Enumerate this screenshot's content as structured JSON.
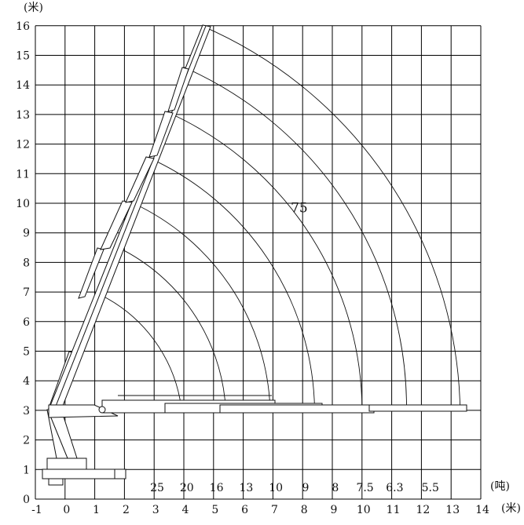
{
  "diagram": {
    "x_unit_label": "(米)",
    "y_unit_label": "(米)",
    "load_unit_label": "(吨)",
    "x_ticks": [
      "-1",
      "0",
      "1",
      "2",
      "3",
      "4",
      "5",
      "6",
      "7",
      "8",
      "9",
      "10",
      "11",
      "12",
      "13",
      "14"
    ],
    "y_ticks": [
      "0",
      "1",
      "2",
      "3",
      "4",
      "5",
      "6",
      "7",
      "8",
      "9",
      "10",
      "11",
      "12",
      "13",
      "14",
      "15",
      "16"
    ],
    "x_range": [
      -1,
      14
    ],
    "y_range": [
      0,
      16
    ],
    "capacities": [
      {
        "label": "25",
        "radius_m": 4.0
      },
      {
        "label": "20",
        "radius_m": 5.0
      },
      {
        "label": "16",
        "radius_m": 6.0
      },
      {
        "label": "13",
        "radius_m": 7.0
      },
      {
        "label": "10",
        "radius_m": 8.0
      },
      {
        "label": "9",
        "radius_m": 9.0
      },
      {
        "label": "8",
        "radius_m": 10.0
      },
      {
        "label": "7.5",
        "radius_m": 11.0
      },
      {
        "label": "6.3",
        "radius_m": 12.0
      },
      {
        "label": "5.5",
        "radius_m": 13.2
      }
    ],
    "arcs": [
      {
        "start": [
          1.2,
          6.9
        ],
        "end": [
          3.9,
          3.2
        ]
      },
      {
        "start": [
          1.8,
          8.5
        ],
        "end": [
          5.4,
          3.2
        ]
      },
      {
        "start": [
          2.3,
          10.0
        ],
        "end": [
          6.9,
          3.2
        ]
      },
      {
        "start": [
          2.9,
          11.5
        ],
        "end": [
          8.4,
          3.2
        ]
      },
      {
        "start": [
          3.4,
          13.1
        ],
        "end": [
          10.0,
          3.2
        ]
      },
      {
        "start": [
          4.0,
          14.6
        ],
        "end": [
          11.5,
          3.2
        ]
      },
      {
        "start": [
          4.6,
          16.0
        ],
        "end": [
          13.3,
          3.2
        ]
      }
    ],
    "model_label": "75",
    "model_label_position": [
      7.6,
      9.7
    ]
  }
}
